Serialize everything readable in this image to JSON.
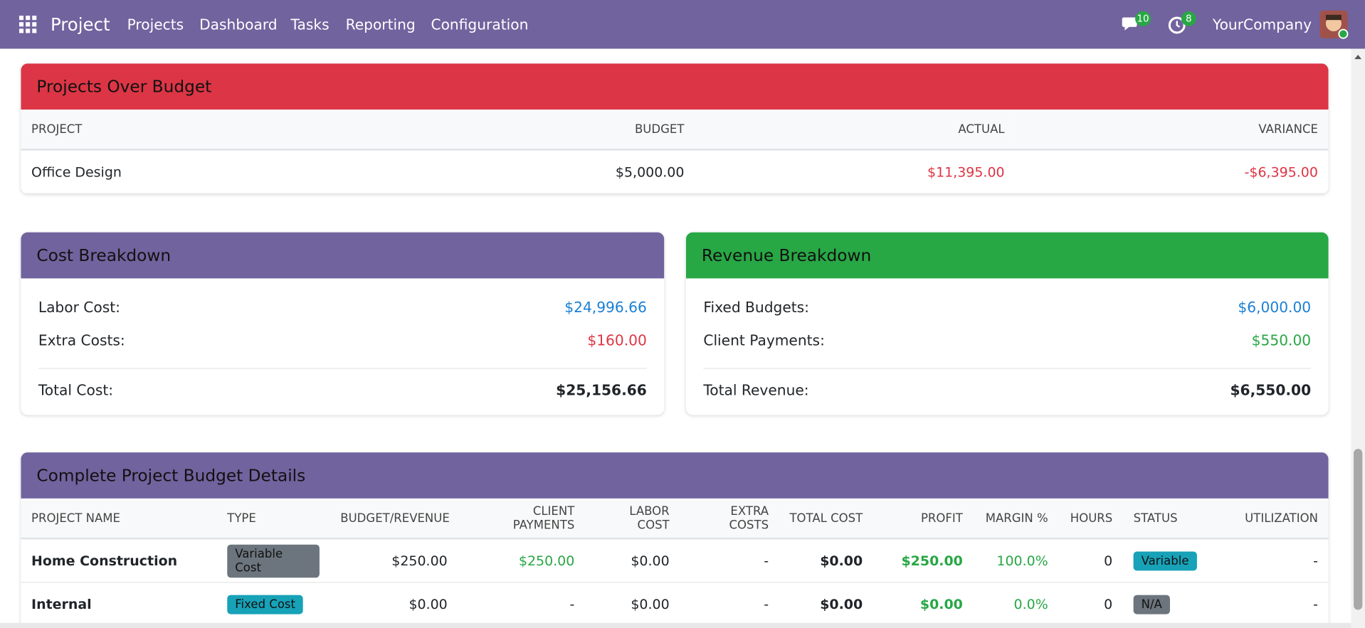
{
  "navbar": {
    "app": "Project",
    "menu": [
      "Projects",
      "Dashboard",
      "Tasks",
      "Reporting",
      "Configuration"
    ],
    "messages_badge": "10",
    "activities_badge": "8",
    "company": "YourCompany"
  },
  "over_budget": {
    "title": "Projects Over Budget",
    "headers": [
      "PROJECT",
      "BUDGET",
      "ACTUAL",
      "VARIANCE"
    ],
    "rows": [
      [
        "Office Design",
        "$5,000.00",
        "$11,395.00",
        "-$6,395.00"
      ]
    ]
  },
  "cost_breakdown": {
    "title": "Cost Breakdown",
    "items": [
      {
        "label": "Labor Cost:",
        "value": "$24,996.66"
      },
      {
        "label": "Extra Costs:",
        "value": "$160.00"
      }
    ],
    "total": {
      "label": "Total Cost:",
      "value": "$25,156.66"
    }
  },
  "revenue_breakdown": {
    "title": "Revenue Breakdown",
    "items": [
      {
        "label": "Fixed Budgets:",
        "value": "$6,000.00"
      },
      {
        "label": "Client Payments:",
        "value": "$550.00"
      }
    ],
    "total": {
      "label": "Total Revenue:",
      "value": "$6,550.00"
    }
  },
  "details": {
    "title": "Complete Project Budget Details",
    "headers": [
      "PROJECT NAME",
      "TYPE",
      "BUDGET/REVENUE",
      "CLIENT PAYMENTS",
      "LABOR COST",
      "EXTRA COSTS",
      "TOTAL COST",
      "PROFIT",
      "MARGIN %",
      "HOURS",
      "STATUS",
      "UTILIZATION"
    ],
    "rows": [
      [
        "Home Construction",
        "Variable Cost",
        "$250.00",
        "$250.00",
        "$0.00",
        "-",
        "$0.00",
        "$250.00",
        "100.0%",
        "0",
        "Variable",
        "-"
      ],
      [
        "Internal",
        "Fixed Cost",
        "$0.00",
        "-",
        "$0.00",
        "-",
        "$0.00",
        "$0.00",
        "0.0%",
        "0",
        "N/A",
        "-"
      ]
    ]
  }
}
